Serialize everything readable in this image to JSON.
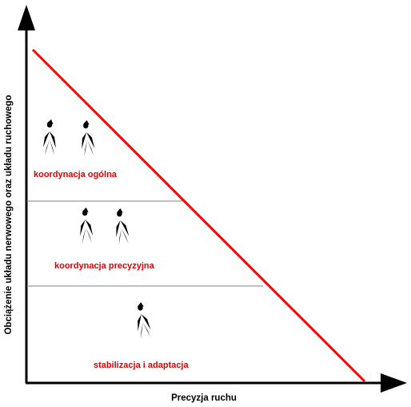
{
  "axes": {
    "x_label": "Precyzja ruchu",
    "y_label": "Obciążenie układu nerwowego oraz układu ruchowego"
  },
  "zones": [
    {
      "label": "koordynacja ogólna"
    },
    {
      "label": "koordynacja precyzyjna"
    },
    {
      "label": "stabilizacja i adaptacja"
    }
  ],
  "colors": {
    "trend_line": "#ff0000",
    "zone_label": "#e00000",
    "axis": "#000000",
    "separator": "#808080"
  },
  "icons": [
    "skier-straight-icon",
    "skier-crouch-icon",
    "skier-poles-icon",
    "skier-turn-icon",
    "skier-low-icon"
  ]
}
